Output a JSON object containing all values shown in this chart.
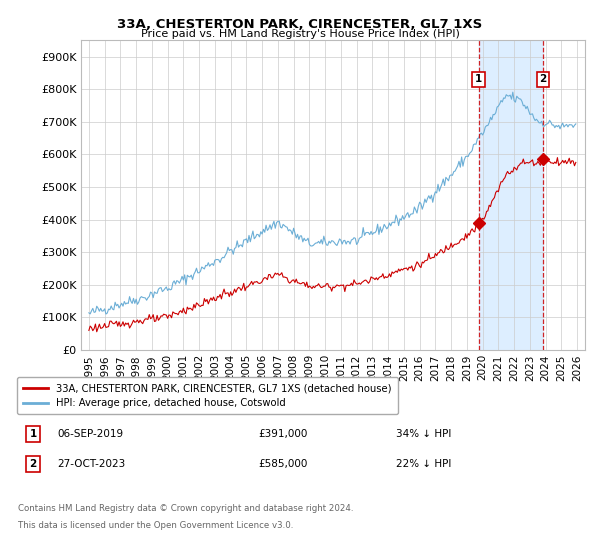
{
  "title": "33A, CHESTERTON PARK, CIRENCESTER, GL7 1XS",
  "subtitle": "Price paid vs. HM Land Registry's House Price Index (HPI)",
  "hpi_label": "HPI: Average price, detached house, Cotswold",
  "property_label": "33A, CHESTERTON PARK, CIRENCESTER, GL7 1XS (detached house)",
  "hpi_color": "#6baed6",
  "property_color": "#cc0000",
  "vline_color": "#cc0000",
  "shade_color": "#ddeeff",
  "sale1_date_num": 2019.75,
  "sale1_value": 391000,
  "sale1_label": "06-SEP-2019",
  "sale1_price_label": "£391,000",
  "sale1_hpi_label": "34% ↓ HPI",
  "sale2_date_num": 2023.83,
  "sale2_value": 585000,
  "sale2_label": "27-OCT-2023",
  "sale2_price_label": "£585,000",
  "sale2_hpi_label": "22% ↓ HPI",
  "ylim": [
    0,
    950000
  ],
  "xlim_start": 1994.5,
  "xlim_end": 2026.5,
  "footer1": "Contains HM Land Registry data © Crown copyright and database right 2024.",
  "footer2": "This data is licensed under the Open Government Licence v3.0.",
  "yticks": [
    0,
    100000,
    200000,
    300000,
    400000,
    500000,
    600000,
    700000,
    800000,
    900000
  ],
  "ytick_labels": [
    "£0",
    "£100K",
    "£200K",
    "£300K",
    "£400K",
    "£500K",
    "£600K",
    "£700K",
    "£800K",
    "£900K"
  ],
  "xticks": [
    1995,
    1996,
    1997,
    1998,
    1999,
    2000,
    2001,
    2002,
    2003,
    2004,
    2005,
    2006,
    2007,
    2008,
    2009,
    2010,
    2011,
    2012,
    2013,
    2014,
    2015,
    2016,
    2017,
    2018,
    2019,
    2020,
    2021,
    2022,
    2023,
    2024,
    2025,
    2026
  ],
  "background_color": "#ffffff",
  "grid_color": "#cccccc"
}
